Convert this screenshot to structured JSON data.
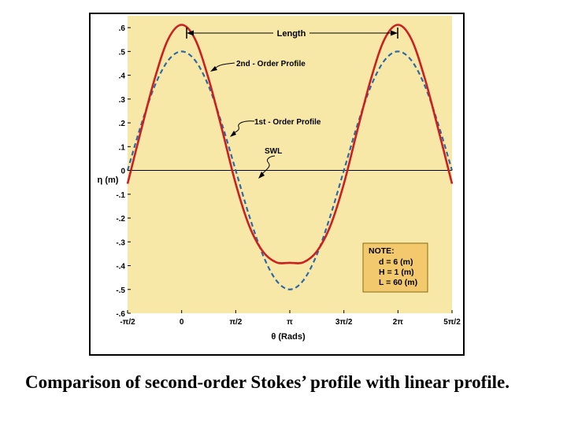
{
  "caption": "Comparison of second-order Stokes’ profile with linear profile.",
  "colors": {
    "plot_background": "#f8e8a8",
    "second_order": "#cc1f1f",
    "first_order": "#2d6aa6",
    "swl": "#000000",
    "note_box": "#f2c96c",
    "note_border": "#8a6a10"
  },
  "chart_data": {
    "type": "line",
    "title": "",
    "xlabel": "θ (Rads)",
    "ylabel": "η (m)",
    "xlim": [
      -1.5708,
      7.854
    ],
    "ylim": [
      -0.6,
      0.65
    ],
    "x_ticks": [
      {
        "value": -1.5708,
        "label": "-π/2"
      },
      {
        "value": 0,
        "label": "0"
      },
      {
        "value": 1.5708,
        "label": "π/2"
      },
      {
        "value": 3.1416,
        "label": "π"
      },
      {
        "value": 4.7124,
        "label": "3π/2"
      },
      {
        "value": 6.2832,
        "label": "2π"
      },
      {
        "value": 7.854,
        "label": "5π/2"
      }
    ],
    "y_ticks": [
      {
        "value": 0.6,
        "label": ".6"
      },
      {
        "value": 0.5,
        "label": ".5"
      },
      {
        "value": 0.4,
        "label": ".4"
      },
      {
        "value": 0.3,
        "label": ".3"
      },
      {
        "value": 0.2,
        "label": ".2"
      },
      {
        "value": 0.1,
        "label": ".1"
      },
      {
        "value": 0,
        "label": "0"
      },
      {
        "value": -0.1,
        "label": "-.1"
      },
      {
        "value": -0.2,
        "label": "-.2"
      },
      {
        "value": -0.3,
        "label": "-.3"
      },
      {
        "value": -0.4,
        "label": "-.4"
      },
      {
        "value": -0.5,
        "label": "-.5"
      },
      {
        "value": -0.6,
        "label": "-.6"
      }
    ],
    "series": [
      {
        "name": "2nd - Order Profile",
        "x": [
          -1.5708,
          -1.1781,
          -0.7854,
          -0.3927,
          0,
          0.3927,
          0.7854,
          1.1781,
          1.5708,
          1.9635,
          2.3562,
          2.7489,
          3.1416,
          3.5343,
          3.927,
          4.3197,
          4.7124,
          5.1051,
          5.4978,
          5.8905,
          6.2832,
          6.6759,
          7.0686,
          7.4613,
          7.854
        ],
        "y": [
          -0.056,
          0.169,
          0.384,
          0.551,
          0.612,
          0.551,
          0.384,
          0.169,
          -0.056,
          -0.233,
          -0.34,
          -0.386,
          -0.388,
          -0.386,
          -0.34,
          -0.233,
          -0.056,
          0.169,
          0.384,
          0.551,
          0.612,
          0.551,
          0.384,
          0.169,
          -0.056
        ],
        "style": "solid"
      },
      {
        "name": "1st - Order Profile",
        "x": [
          -1.5708,
          -1.1781,
          -0.7854,
          -0.3927,
          0,
          0.3927,
          0.7854,
          1.1781,
          1.5708,
          1.9635,
          2.3562,
          2.7489,
          3.1416,
          3.5343,
          3.927,
          4.3197,
          4.7124,
          5.1051,
          5.4978,
          5.8905,
          6.2832,
          6.6759,
          7.0686,
          7.4613,
          7.854
        ],
        "y": [
          0,
          0.191,
          0.354,
          0.462,
          0.5,
          0.462,
          0.354,
          0.191,
          0,
          -0.191,
          -0.354,
          -0.462,
          -0.5,
          -0.462,
          -0.354,
          -0.191,
          0,
          0.191,
          0.354,
          0.462,
          0.5,
          0.462,
          0.354,
          0.191,
          0
        ],
        "style": "dashed"
      },
      {
        "name": "SWL",
        "x": [
          -1.5708,
          7.854
        ],
        "y": [
          0,
          0
        ],
        "style": "thin"
      }
    ],
    "annotations": {
      "length": "Length",
      "second_order": "2nd - Order Profile",
      "first_order": "1st - Order Profile",
      "swl": "SWL"
    },
    "note": {
      "title": "NOTE:",
      "lines": [
        {
          "key": "d",
          "text": " = 6 (m)"
        },
        {
          "key": "H",
          "text": " = 1 (m)"
        },
        {
          "key": "L",
          "text": " = 60 (m)"
        }
      ]
    },
    "grid": false,
    "legend": "none"
  }
}
